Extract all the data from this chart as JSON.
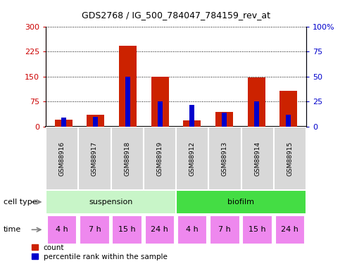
{
  "title": "GDS2768 / IG_500_784047_784159_rev_at",
  "samples": [
    "GSM88916",
    "GSM88917",
    "GSM88918",
    "GSM88919",
    "GSM88912",
    "GSM88913",
    "GSM88914",
    "GSM88915"
  ],
  "counts": [
    22,
    35,
    242,
    150,
    20,
    45,
    148,
    108
  ],
  "percentile_ranks": [
    9,
    10,
    50,
    25,
    22,
    14,
    25,
    12
  ],
  "left_yticks": [
    0,
    75,
    150,
    225,
    300
  ],
  "right_yticks": [
    0,
    25,
    50,
    75,
    100
  ],
  "cell_types": [
    {
      "label": "suspension",
      "start": 0,
      "end": 4,
      "color": "#c8f5c8"
    },
    {
      "label": "biofilm",
      "start": 4,
      "end": 8,
      "color": "#44dd44"
    }
  ],
  "times": [
    "4 h",
    "7 h",
    "15 h",
    "24 h",
    "4 h",
    "7 h",
    "15 h",
    "24 h"
  ],
  "time_color": "#ee88ee",
  "bar_color_red": "#cc2200",
  "bar_color_blue": "#0000cc",
  "bar_width": 0.55,
  "blue_bar_width": 0.15,
  "left_axis_color": "#cc0000",
  "right_axis_color": "#0000cc",
  "cell_type_label": "cell type",
  "time_label": "time",
  "legend_count": "count",
  "legend_percentile": "percentile rank within the sample",
  "bg_color": "#ffffff",
  "sample_box_color": "#d8d8d8"
}
